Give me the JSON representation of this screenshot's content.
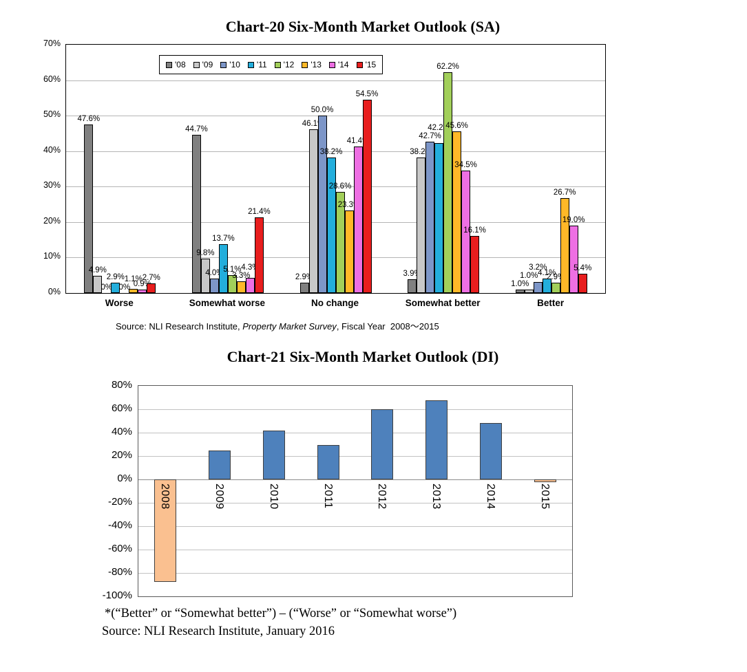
{
  "page": {
    "chart20_title": "Chart-20 Six-Month Market Outlook (SA)",
    "chart20_source": {
      "prefix": "Source: NLI Research Institute, ",
      "italic": "Property Market Survey",
      "suffix": ", Fiscal Year  2008～2015"
    },
    "chart21_title": "Chart-21 Six-Month Market Outlook (DI)",
    "footnote_line1": "*(“Better” or “Somewhat better”) – (“Worse” or “Somewhat worse”)",
    "footnote_line2": "Source: NLI Research Institute, January 2016"
  },
  "chart_data": [
    {
      "type": "bar",
      "title": "Chart-20 Six-Month Market Outlook (SA)",
      "categories": [
        "Worse",
        "Somewhat worse",
        "No change",
        "Somewhat better",
        "Better"
      ],
      "series": [
        {
          "name": "'08",
          "color": "#808080",
          "values": [
            47.6,
            44.7,
            2.9,
            3.9,
            1.0
          ],
          "labels": [
            "47.6%",
            "44.7%",
            "2.9%",
            "3.9%",
            "1.0%"
          ]
        },
        {
          "name": "'09",
          "color": "#C8C8C8",
          "values": [
            4.9,
            9.8,
            46.1,
            38.2,
            1.0
          ],
          "labels": [
            "4.9%",
            "9.8%",
            "46.1%",
            "38.2%",
            "1.0%"
          ]
        },
        {
          "name": "'10",
          "color": "#7D96C8",
          "values": [
            0.0,
            4.0,
            50.0,
            42.7,
            3.2
          ],
          "labels": [
            "0%",
            "4.0%",
            "50.0%",
            "42.7%",
            "3.2%"
          ]
        },
        {
          "name": "'11",
          "color": "#23AEDC",
          "values": [
            2.9,
            13.7,
            38.2,
            42.2,
            4.1
          ],
          "labels": [
            "2.9%",
            "13.7%",
            "38.2%",
            "42.2%",
            "4.1%"
          ]
        },
        {
          "name": "'12",
          "color": "#A2CF5A",
          "values": [
            0.0,
            5.1,
            28.6,
            62.2,
            2.9
          ],
          "labels": [
            "0%",
            "5.1%",
            "28.6%",
            "62.2%",
            "2.9%"
          ]
        },
        {
          "name": "'13",
          "color": "#FFB828",
          "values": [
            1.1,
            3.3,
            23.3,
            45.6,
            26.7
          ],
          "labels": [
            "1.1%",
            "3.3%",
            "23.3%",
            "45.6%",
            "26.7%"
          ]
        },
        {
          "name": "'14",
          "color": "#EE6FE3",
          "values": [
            0.9,
            4.3,
            41.4,
            34.5,
            19.0
          ],
          "labels": [
            "0.9%",
            "4.3%",
            "41.4%",
            "34.5%",
            "19.0%"
          ]
        },
        {
          "name": "'15",
          "color": "#E81E1E",
          "values": [
            2.7,
            21.4,
            54.5,
            16.1,
            5.4
          ],
          "labels": [
            "2.7%",
            "21.4%",
            "54.5%",
            "16.1%",
            "5.4%"
          ]
        }
      ],
      "ylim": [
        0,
        70
      ],
      "ytick_step": 10,
      "xlabel": "",
      "ylabel": "",
      "grid": true,
      "legend_position": "top-inside"
    },
    {
      "type": "bar",
      "title": "Chart-21 Six-Month Market Outlook (DI)",
      "categories": [
        "2008",
        "2009",
        "2010",
        "2011",
        "2012",
        "2013",
        "2014",
        "2015"
      ],
      "values": [
        -87.4,
        24.5,
        41.9,
        29.7,
        60.0,
        67.9,
        48.3,
        -2.6
      ],
      "ylim": [
        -100,
        80
      ],
      "ytick_step": 20,
      "xlabel": "",
      "ylabel": "",
      "grid": true,
      "positive_color": "#4E81BC",
      "negative_color": "#FAC090"
    }
  ]
}
